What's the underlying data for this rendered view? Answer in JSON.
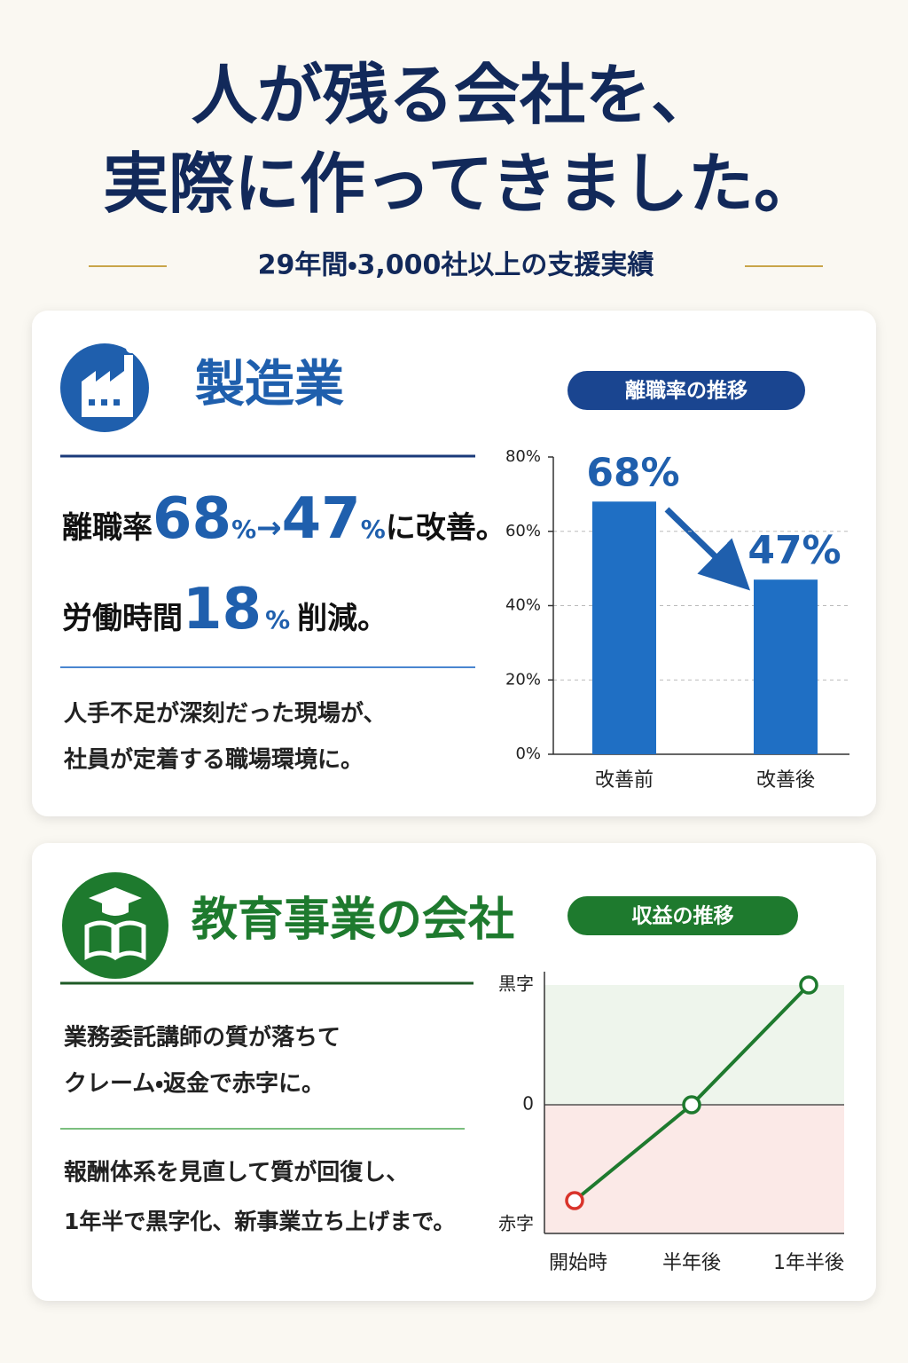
{
  "header": {
    "title_lines": [
      "人が残る会社を、",
      "実際に作ってきました。"
    ],
    "subtitle": "29年間・3,000社以上の支援実績"
  },
  "sections": [
    {
      "heading": "製造業",
      "stats": [
        {
          "label": "離職率",
          "before": 68,
          "unit": "%",
          "arrow": "→",
          "after": 47,
          "tail": "に改善。"
        },
        {
          "label": "労働時間",
          "value": 18,
          "unit": "%",
          "tail": "削減。"
        }
      ],
      "description": [
        "人手不足が深刻だった現場が、",
        "社員が定着する職場環境に。"
      ],
      "chart": {
        "type": "bar",
        "title": "離職率の推移",
        "categories": [
          "改善前",
          "改善後"
        ],
        "values": [
          68,
          47
        ],
        "value_labels": [
          "68%",
          "47%"
        ],
        "color": "#1f6fc4",
        "ylim": [
          0,
          80
        ],
        "yticks": [
          {
            "value": 0,
            "label": "0%"
          },
          {
            "value": 20,
            "label": "20%"
          },
          {
            "value": 40,
            "label": "40%"
          },
          {
            "value": 60,
            "label": "60%"
          },
          {
            "value": 80,
            "label": "80%"
          }
        ],
        "grid": true
      }
    },
    {
      "heading": "教育事業の会社",
      "problem": [
        "業務委託講師の質が落ちて",
        "クレーム・返金で赤字に。"
      ],
      "result": [
        "報酬体系を見直して質が回復し、",
        "1年半で黒字化、新事業立ち上げまで。"
      ],
      "chart": {
        "type": "line",
        "title": "収益の推移",
        "categories": [
          "開始時",
          "半年後",
          "1年半後"
        ],
        "values": [
          -0.8,
          0,
          1
        ],
        "color": "#1e7a2e",
        "point_colors": [
          "#d9342b",
          "#1e7a2e",
          "#1e7a2e"
        ],
        "ylim": [
          -1,
          1
        ],
        "yticks": [
          {
            "value": 1,
            "label": "黒字"
          },
          0,
          {
            "value": -1,
            "label": "赤字"
          }
        ],
        "grid": true
      }
    }
  ]
}
